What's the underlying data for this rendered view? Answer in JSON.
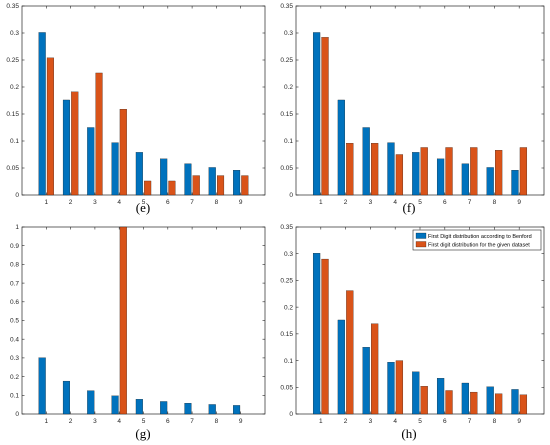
{
  "chart_data": [
    {
      "type": "bar",
      "panel_label": "(e)",
      "categories": [
        "1",
        "2",
        "3",
        "4",
        "5",
        "6",
        "7",
        "8",
        "9"
      ],
      "ylim": [
        0,
        0.35
      ],
      "yticks": [
        "0",
        "0.05",
        "0.1",
        "0.15",
        "0.2",
        "0.25",
        "0.3",
        "0.35"
      ],
      "series": [
        {
          "values": [
            0.301,
            0.176,
            0.125,
            0.097,
            0.079,
            0.067,
            0.058,
            0.051,
            0.046
          ],
          "color": "#0072BD"
        },
        {
          "values": [
            0.254,
            0.191,
            0.226,
            0.159,
            0.026,
            0.026,
            0.036,
            0.036,
            0.036
          ],
          "color": "#D95319"
        }
      ]
    },
    {
      "type": "bar",
      "panel_label": "(f)",
      "categories": [
        "1",
        "2",
        "3",
        "4",
        "5",
        "6",
        "7",
        "8",
        "9"
      ],
      "ylim": [
        0,
        0.35
      ],
      "yticks": [
        "0",
        "0.05",
        "0.1",
        "0.15",
        "0.2",
        "0.25",
        "0.3",
        "0.35"
      ],
      "series": [
        {
          "values": [
            0.301,
            0.176,
            0.125,
            0.097,
            0.079,
            0.067,
            0.058,
            0.051,
            0.046
          ],
          "color": "#0072BD"
        },
        {
          "values": [
            0.292,
            0.096,
            0.096,
            0.075,
            0.088,
            0.088,
            0.088,
            0.083,
            0.088
          ],
          "color": "#D95319"
        }
      ]
    },
    {
      "type": "bar",
      "panel_label": "(g)",
      "categories": [
        "1",
        "2",
        "3",
        "4",
        "5",
        "6",
        "7",
        "8",
        "9"
      ],
      "ylim": [
        0,
        1
      ],
      "yticks": [
        "0",
        "0.1",
        "0.2",
        "0.3",
        "0.4",
        "0.5",
        "0.6",
        "0.7",
        "0.8",
        "0.9",
        "1"
      ],
      "series": [
        {
          "values": [
            0.301,
            0.176,
            0.125,
            0.097,
            0.079,
            0.067,
            0.058,
            0.051,
            0.046
          ],
          "color": "#0072BD"
        },
        {
          "values": [
            0,
            0,
            0,
            1.0,
            0,
            0,
            0,
            0,
            0
          ],
          "color": "#D95319"
        }
      ]
    },
    {
      "type": "bar",
      "panel_label": "(h)",
      "categories": [
        "1",
        "2",
        "3",
        "4",
        "5",
        "6",
        "7",
        "8",
        "9"
      ],
      "ylim": [
        0,
        0.35
      ],
      "yticks": [
        "0",
        "0.05",
        "0.1",
        "0.15",
        "0.2",
        "0.25",
        "0.3",
        "0.35"
      ],
      "legend": "top-right",
      "series": [
        {
          "name": "First Digit distribution according to Benford",
          "values": [
            0.301,
            0.176,
            0.125,
            0.097,
            0.079,
            0.067,
            0.058,
            0.051,
            0.046
          ],
          "color": "#0072BD"
        },
        {
          "name": "First digit distribution for the given dataset",
          "values": [
            0.29,
            0.231,
            0.169,
            0.1,
            0.052,
            0.044,
            0.041,
            0.038,
            0.036
          ],
          "color": "#D95319"
        }
      ]
    }
  ]
}
